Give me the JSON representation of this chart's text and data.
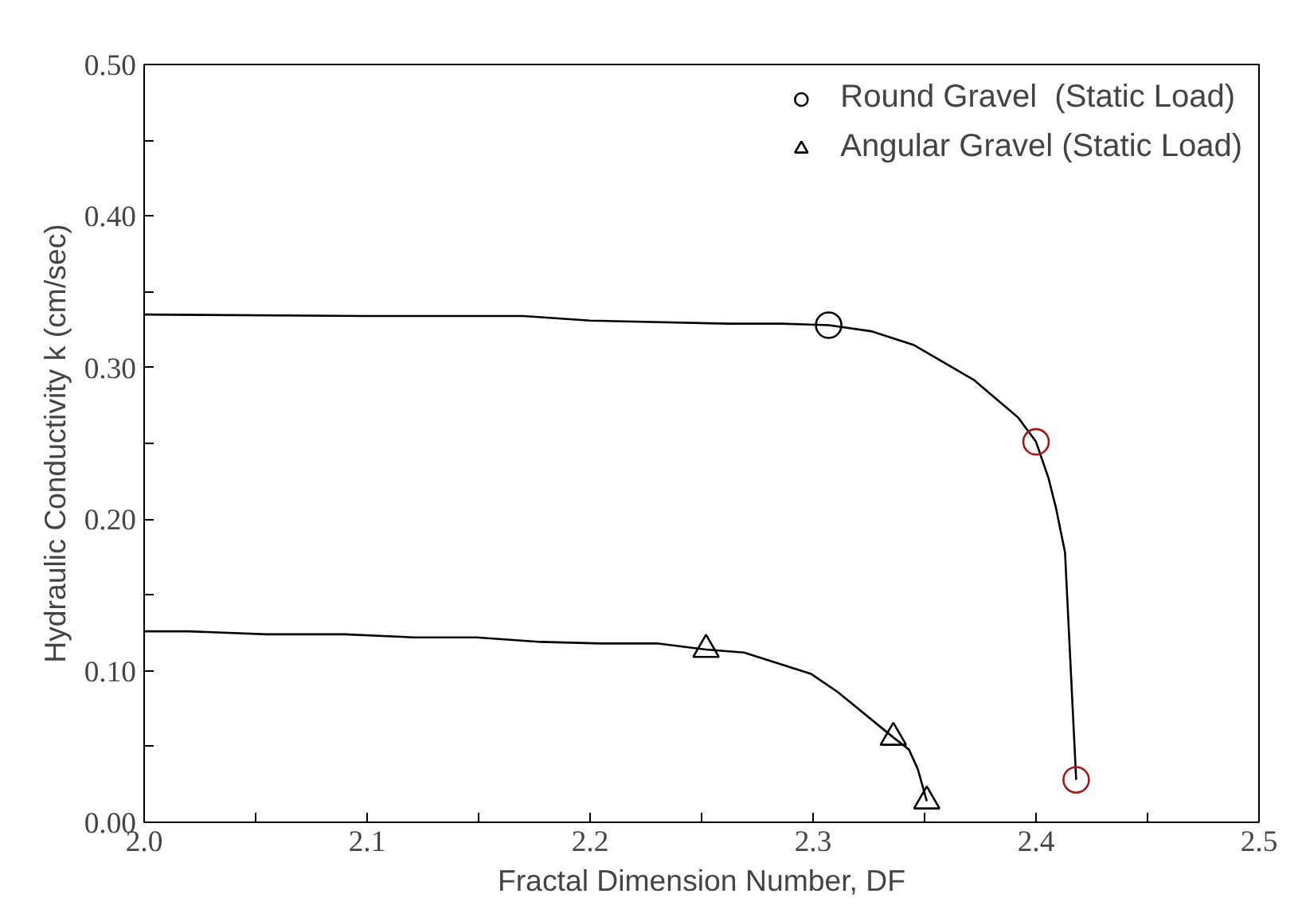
{
  "chart_data": {
    "type": "scatter",
    "xlabel": "Fractal Dimension Number, DF",
    "ylabel": "Hydraulic Conductivity k (cm/sec)",
    "series": [
      {
        "type": "line",
        "color": "#000000",
        "marker": "none",
        "x": [
          2.0,
          2.1,
          2.17,
          2.2,
          2.262,
          2.286,
          2.307,
          2.326,
          2.345,
          2.372,
          2.392,
          2.4,
          2.4056,
          2.409,
          2.413,
          2.418
        ],
        "values": [
          0.335,
          0.334,
          0.334,
          0.331,
          0.329,
          0.329,
          0.328,
          0.324,
          0.315,
          0.292,
          0.267,
          0.251,
          0.227,
          0.207,
          0.178,
          0.028
        ]
      },
      {
        "type": "line",
        "color": "#000000",
        "marker": "none",
        "x": [
          2.0,
          2.02,
          2.055,
          2.09,
          2.121,
          2.149,
          2.178,
          2.205,
          2.23,
          2.252,
          2.269,
          2.299,
          2.311,
          2.336,
          2.343,
          2.347,
          2.351
        ],
        "values": [
          0.126,
          0.126,
          0.124,
          0.124,
          0.122,
          0.122,
          0.119,
          0.118,
          0.118,
          0.114,
          0.112,
          0.098,
          0.086,
          0.056,
          0.048,
          0.035,
          0.014
        ]
      },
      {
        "name": "Round Gravel  (Static Load)",
        "marker": "circle",
        "color": "#a01818",
        "colors": [
          "#000000",
          "#a01818",
          "#a01818"
        ],
        "x": [
          2.307,
          2.4,
          2.418
        ],
        "values": [
          0.328,
          0.251,
          0.028
        ]
      },
      {
        "name": "Angular Gravel (Static Load)",
        "marker": "triangle",
        "color": "#000000",
        "x": [
          2.252,
          2.336,
          2.351
        ],
        "values": [
          0.114,
          0.056,
          0.014
        ]
      }
    ],
    "xlim": [
      2.0,
      2.5
    ],
    "xticks": [
      {
        "value": 2.0,
        "label": "2.0"
      },
      {
        "value": 2.05,
        "label": null
      },
      {
        "value": 2.1,
        "label": "2.1"
      },
      {
        "value": 2.15,
        "label": null
      },
      {
        "value": 2.2,
        "label": "2.2"
      },
      {
        "value": 2.25,
        "label": null
      },
      {
        "value": 2.3,
        "label": "2.3"
      },
      {
        "value": 2.35,
        "label": null
      },
      {
        "value": 2.4,
        "label": "2.4"
      },
      {
        "value": 2.45,
        "label": null
      },
      {
        "value": 2.5,
        "label": "2.5"
      }
    ],
    "ylim": [
      0,
      0.5
    ],
    "yticks": [
      {
        "value": 0,
        "label": "0.00"
      },
      {
        "value": 0.05,
        "label": null
      },
      {
        "value": 0.1,
        "label": "0.10"
      },
      {
        "value": 0.15,
        "label": null
      },
      {
        "value": 0.2,
        "label": "0.20"
      },
      {
        "value": 0.25,
        "label": null
      },
      {
        "value": 0.3,
        "label": "0.30"
      },
      {
        "value": 0.35,
        "label": null
      },
      {
        "value": 0.4,
        "label": "0.40"
      },
      {
        "value": 0.45,
        "label": null
      },
      {
        "value": 0.5,
        "label": "0.50"
      }
    ],
    "grid": false,
    "legend": "top right"
  }
}
